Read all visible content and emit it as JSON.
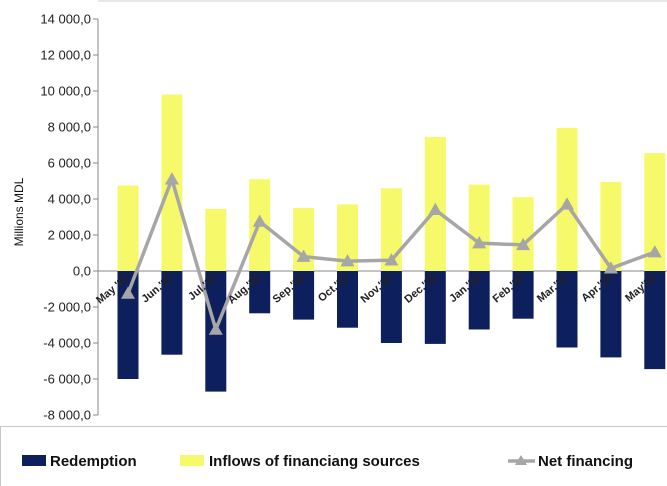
{
  "chart_data": {
    "type": "bar",
    "categories": [
      "May '25",
      "Jun.'25",
      "Jul.'25",
      "Aug.'25",
      "Sep.'25",
      "Oct.'25",
      "Nov.'25",
      "Dec.'25",
      "Jan.'26",
      "Feb.'26",
      "Mar.'26",
      "Apr.'26",
      "May'26"
    ],
    "series": [
      {
        "name": "Redemption",
        "kind": "bar",
        "color": "#0d1f5c",
        "values": [
          -6000,
          -4650,
          -6700,
          -2350,
          -2700,
          -3150,
          -4000,
          -4050,
          -3250,
          -2650,
          -4250,
          -4800,
          -5450
        ]
      },
      {
        "name": "Inflows of financiang sources",
        "kind": "bar",
        "color": "#f6f96a",
        "values": [
          4750,
          9800,
          3450,
          5100,
          3500,
          3700,
          4600,
          7450,
          4800,
          4100,
          7950,
          4950,
          6550
        ]
      },
      {
        "name": "Net financing",
        "kind": "line",
        "color": "#a6a6a6",
        "values": [
          -1250,
          5100,
          -3250,
          2750,
          800,
          550,
          600,
          3400,
          1550,
          1450,
          3700,
          150,
          1050
        ]
      }
    ],
    "ylabel": "Millions MDL",
    "ylim": [
      -8000,
      14000
    ],
    "yticks": [
      "14 000,0",
      "12 000,0",
      "10 000,0",
      "8 000,0",
      "6 000,0",
      "4 000,0",
      "2 000,0",
      "0,0",
      "-2 000,0",
      "-4 000,0",
      "-6 000,0",
      "-8 000,0"
    ],
    "ytick_values": [
      14000,
      12000,
      10000,
      8000,
      6000,
      4000,
      2000,
      0,
      -2000,
      -4000,
      -6000,
      -8000
    ],
    "grid": false,
    "legend_position": "bottom"
  }
}
